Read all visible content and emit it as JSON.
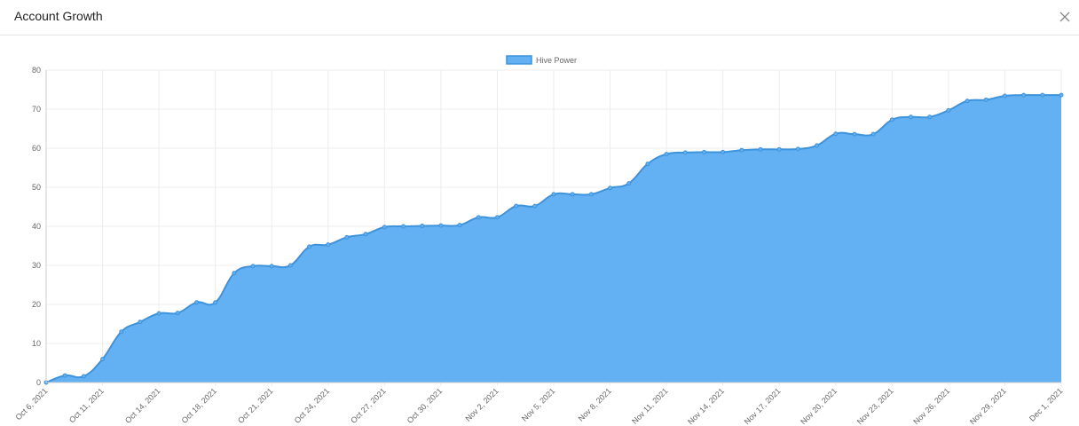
{
  "header": {
    "title": "Account Growth"
  },
  "chart_data": {
    "type": "area",
    "categories": [
      "Oct 6, 2021",
      null,
      null,
      "Oct 11, 2021",
      null,
      null,
      "Oct 14, 2021",
      null,
      null,
      "Oct 18, 2021",
      null,
      null,
      "Oct 21, 2021",
      null,
      null,
      "Oct 24, 2021",
      null,
      null,
      "Oct 27, 2021",
      null,
      null,
      "Oct 30, 2021",
      null,
      null,
      "Nov 2, 2021",
      null,
      null,
      "Nov 5, 2021",
      null,
      null,
      "Nov 8, 2021",
      null,
      null,
      "Nov 11, 2021",
      null,
      null,
      "Nov 14, 2021",
      null,
      null,
      "Nov 17, 2021",
      null,
      null,
      "Nov 20, 2021",
      null,
      null,
      "Nov 23, 2021",
      null,
      null,
      "Nov 26, 2021",
      null,
      null,
      "Nov 29, 2021",
      null,
      null,
      "Dec 1, 2021"
    ],
    "series": [
      {
        "name": "Hive Power",
        "color": "#63b1f3",
        "line_color": "#3d93dc",
        "values": [
          0,
          1.8,
          1.6,
          6,
          13,
          15.5,
          17.7,
          17.8,
          20.5,
          20.5,
          28,
          29.8,
          29.8,
          30,
          34.8,
          35.3,
          37.2,
          38,
          39.8,
          40,
          40.1,
          40.2,
          40.3,
          42.3,
          42.3,
          45.2,
          45.2,
          48.2,
          48.2,
          48.2,
          49.8,
          51,
          56,
          58.5,
          58.9,
          59,
          59,
          59.5,
          59.7,
          59.7,
          59.8,
          60.7,
          63.7,
          63.6,
          63.6,
          67.3,
          68,
          68,
          69.7,
          72.1,
          72.4,
          73.4,
          73.6,
          73.6,
          73.6
        ]
      }
    ],
    "ylim": [
      0,
      80
    ],
    "yticks": [
      0,
      10,
      20,
      30,
      40,
      50,
      60,
      70,
      80
    ],
    "grid": true,
    "legend": "top"
  }
}
